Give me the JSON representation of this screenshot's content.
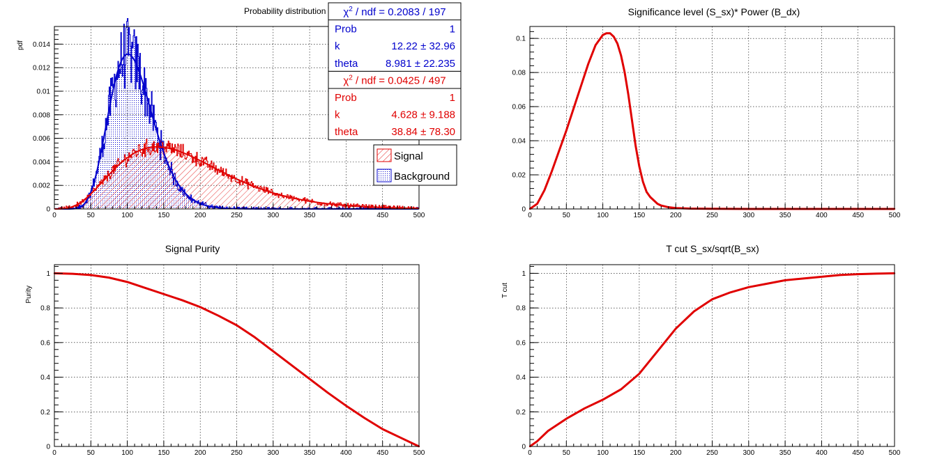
{
  "colors": {
    "signal": "#e00000",
    "background": "#0000cc",
    "curve": "#e00000"
  },
  "chart_data": [
    {
      "id": "prob",
      "type": "histogram",
      "title": "Probability distribution",
      "xlabel": "",
      "ylabel": "pdf",
      "xlim": [
        0,
        500
      ],
      "ylim": [
        0,
        0.0155
      ],
      "xticks": [
        "0",
        "50",
        "100",
        "150",
        "200",
        "250",
        "300",
        "350",
        "400",
        "450",
        "500"
      ],
      "yticks": [
        0,
        0.002,
        0.004,
        0.006,
        0.008,
        0.01,
        0.012,
        0.014
      ],
      "ytick_labels": [
        "0",
        "0.002",
        "0.004",
        "0.006",
        "0.008",
        "0.01",
        "0.012",
        "0.014"
      ],
      "grid": true,
      "series": [
        {
          "name": "Signal",
          "fill": "hatched",
          "fit": {
            "k": 4.628,
            "theta": 38.84
          }
        },
        {
          "name": "Background",
          "fill": "dotted",
          "fit": {
            "k": 12.22,
            "theta": 8.981
          }
        }
      ],
      "statboxes": [
        {
          "series": "Background",
          "rows": [
            {
              "label": "χ² / ndf",
              "value": "χ² / ndf = 0.2083 / 197",
              "chi": true,
              "text": "/ ndf = 0.2083 / 197"
            },
            {
              "label": "Prob",
              "value": "1"
            },
            {
              "label": "k",
              "value": "12.22 ± 32.96"
            },
            {
              "label": "theta",
              "value": "8.981 ± 22.235"
            }
          ]
        },
        {
          "series": "Signal",
          "rows": [
            {
              "label": "χ² / ndf",
              "chi": true,
              "text": "/ ndf = 0.0425 / 497"
            },
            {
              "label": "Prob",
              "value": "1"
            },
            {
              "label": "k",
              "value": "4.628 ± 9.188"
            },
            {
              "label": "theta",
              "value": "38.84 ± 78.30"
            }
          ]
        }
      ],
      "legend": {
        "placement": "right",
        "entries": [
          "Signal",
          "Background"
        ]
      }
    },
    {
      "id": "signif",
      "type": "line",
      "title": "Significance level (S_sx)* Power (B_dx)",
      "xlabel": "",
      "ylabel": "",
      "xlim": [
        0,
        500
      ],
      "ylim": [
        0,
        0.107
      ],
      "xticks": [
        "0",
        "50",
        "100",
        "150",
        "200",
        "250",
        "300",
        "350",
        "400",
        "450",
        "500"
      ],
      "yticks": [
        0,
        0.02,
        0.04,
        0.06,
        0.08,
        0.1
      ],
      "ytick_labels": [
        "0",
        "0.02",
        "0.04",
        "0.06",
        "0.08",
        "0.1"
      ],
      "grid": true,
      "x": [
        0,
        10,
        20,
        30,
        40,
        50,
        60,
        70,
        80,
        90,
        100,
        105,
        110,
        115,
        120,
        125,
        130,
        135,
        140,
        145,
        150,
        155,
        160,
        165,
        170,
        175,
        180,
        190,
        200,
        220,
        250,
        300,
        350,
        400,
        450,
        500
      ],
      "y": [
        0,
        0.003,
        0.011,
        0.022,
        0.034,
        0.046,
        0.059,
        0.072,
        0.085,
        0.096,
        0.102,
        0.103,
        0.103,
        0.101,
        0.097,
        0.09,
        0.08,
        0.067,
        0.052,
        0.037,
        0.025,
        0.016,
        0.01,
        0.007,
        0.005,
        0.003,
        0.002,
        0.001,
        0.0005,
        0.0002,
        0.0001,
        0,
        0,
        0,
        0,
        0
      ]
    },
    {
      "id": "purity",
      "type": "line",
      "title": "Signal Purity",
      "xlabel": "",
      "ylabel": "Purity",
      "xlim": [
        0,
        500
      ],
      "ylim": [
        0,
        1.05
      ],
      "xticks": [
        "0",
        "50",
        "100",
        "150",
        "200",
        "250",
        "300",
        "350",
        "400",
        "450",
        "500"
      ],
      "yticks": [
        0,
        0.2,
        0.4,
        0.6,
        0.8,
        1
      ],
      "ytick_labels": [
        "0",
        "0.2",
        "0.4",
        "0.6",
        "0.8",
        "1"
      ],
      "grid": true,
      "x": [
        0,
        25,
        50,
        75,
        100,
        125,
        150,
        175,
        200,
        225,
        250,
        275,
        300,
        325,
        350,
        375,
        400,
        425,
        450,
        475,
        500
      ],
      "y": [
        1.0,
        0.997,
        0.99,
        0.975,
        0.95,
        0.915,
        0.88,
        0.845,
        0.805,
        0.755,
        0.7,
        0.63,
        0.55,
        0.47,
        0.39,
        0.31,
        0.235,
        0.165,
        0.1,
        0.05,
        0.0
      ]
    },
    {
      "id": "tcut",
      "type": "line",
      "title": "T cut S_sx/sqrt(B_sx)",
      "xlabel": "",
      "ylabel": "T cut",
      "xlim": [
        0,
        500
      ],
      "ylim": [
        0,
        1.05
      ],
      "xticks": [
        "0",
        "50",
        "100",
        "150",
        "200",
        "250",
        "300",
        "350",
        "400",
        "450",
        "500"
      ],
      "yticks": [
        0,
        0.2,
        0.4,
        0.6,
        0.8,
        1
      ],
      "ytick_labels": [
        "0",
        "0.2",
        "0.4",
        "0.6",
        "0.8",
        "1"
      ],
      "grid": true,
      "x": [
        0,
        10,
        25,
        50,
        75,
        100,
        125,
        150,
        175,
        200,
        225,
        250,
        275,
        300,
        325,
        350,
        375,
        400,
        425,
        450,
        475,
        500
      ],
      "y": [
        0,
        0.03,
        0.09,
        0.16,
        0.22,
        0.27,
        0.33,
        0.42,
        0.55,
        0.68,
        0.78,
        0.85,
        0.89,
        0.92,
        0.94,
        0.96,
        0.97,
        0.98,
        0.99,
        0.995,
        0.998,
        1.0
      ]
    }
  ]
}
